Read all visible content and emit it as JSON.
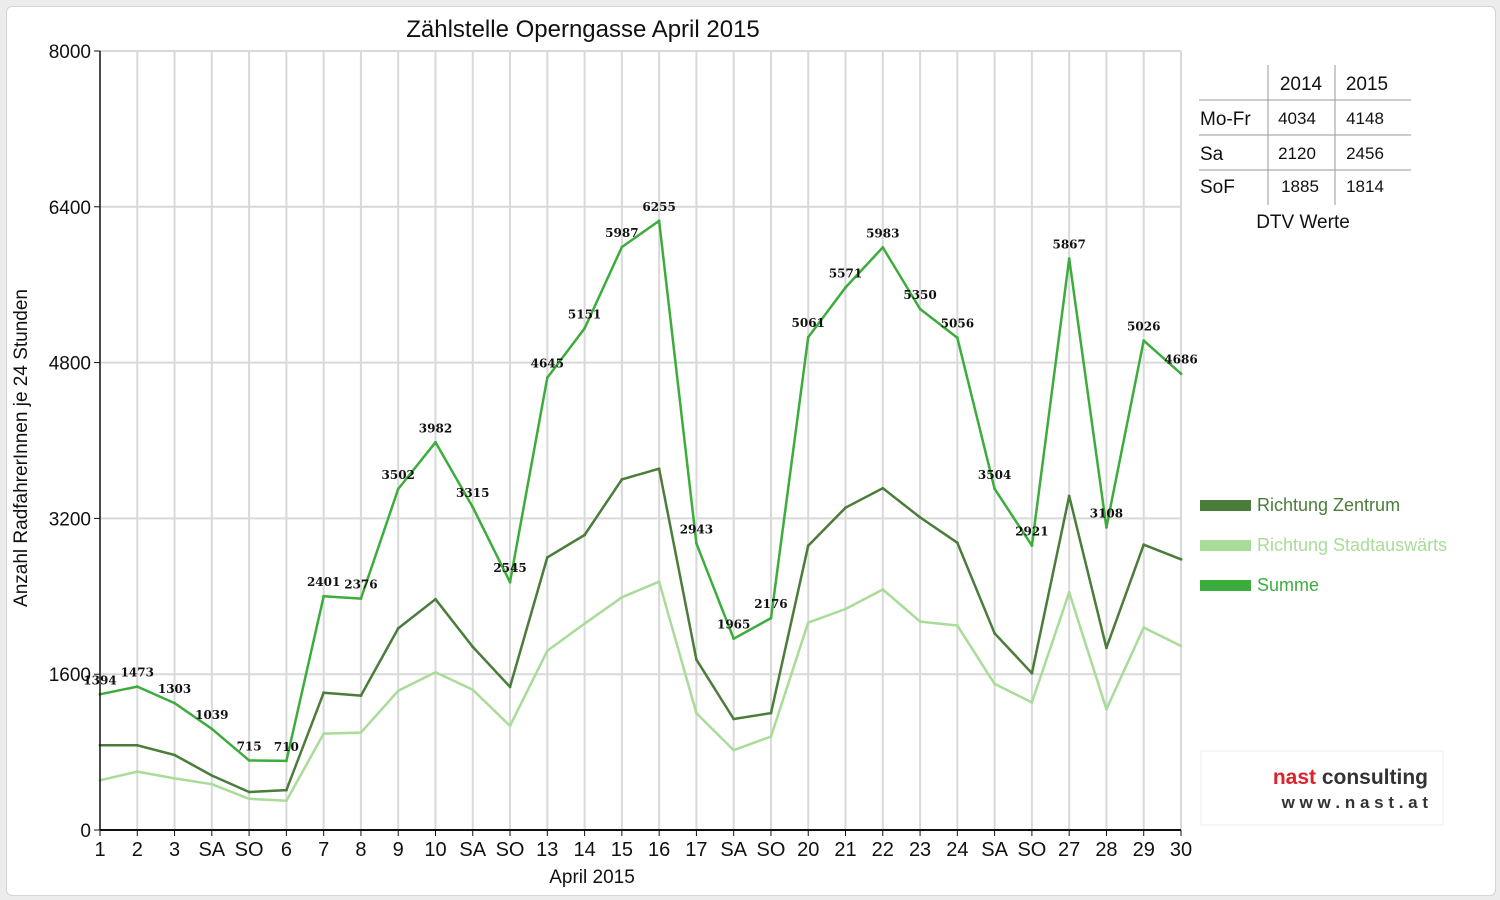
{
  "chart_data": {
    "type": "line",
    "title": "Zählstelle Operngasse April 2015",
    "xlabel": "April 2015",
    "ylabel": "Anzahl RadfahrerInnen je 24 Stunden",
    "ylim": [
      0,
      8000
    ],
    "yticks": [
      "0",
      "1600",
      "3200",
      "4800",
      "6400",
      "8000"
    ],
    "categories": [
      "1",
      "2",
      "3",
      "SA",
      "SO",
      "6",
      "7",
      "8",
      "9",
      "10",
      "SA",
      "SO",
      "13",
      "14",
      "15",
      "16",
      "17",
      "SA",
      "SO",
      "20",
      "21",
      "22",
      "23",
      "24",
      "SA",
      "SO",
      "27",
      "28",
      "29",
      "30"
    ],
    "highlight_categories": [
      4,
      5,
      11,
      18,
      25
    ],
    "highlight_color": "#e00000",
    "grid": true,
    "legend_position": "right",
    "series": [
      {
        "name": "Richtung Zentrum",
        "color": "#4a7c3a",
        "values": [
          870,
          870,
          770,
          560,
          390,
          410,
          1410,
          1380,
          2070,
          2370,
          1880,
          1470,
          2800,
          3030,
          3600,
          3710,
          1750,
          1140,
          1200,
          2920,
          3310,
          3510,
          3210,
          2950,
          2020,
          1610,
          3430,
          1870,
          2930,
          2780
        ]
      },
      {
        "name": "Richtung Stadtauswärts",
        "color": "#a8dc98",
        "values": [
          510,
          600,
          530,
          470,
          320,
          300,
          990,
          1000,
          1430,
          1620,
          1440,
          1070,
          1840,
          2120,
          2390,
          2550,
          1200,
          820,
          960,
          2130,
          2270,
          2470,
          2140,
          2100,
          1500,
          1310,
          2440,
          1240,
          2080,
          1890
        ]
      },
      {
        "name": "Summe",
        "color": "#3cad3c",
        "values": [
          1394,
          1473,
          1303,
          1039,
          715,
          710,
          2401,
          2376,
          3502,
          3982,
          3315,
          2545,
          4645,
          5151,
          5987,
          6255,
          2943,
          1965,
          2176,
          5061,
          5571,
          5983,
          5350,
          5056,
          3504,
          2921,
          5867,
          3108,
          5026,
          4686
        ],
        "labels": [
          "1394",
          "1473",
          "1303",
          "1039",
          "715",
          "710",
          "2401",
          "2376",
          "3502",
          "3982",
          "3315",
          "2545",
          "4645",
          "5151",
          "5987",
          "6255",
          "2943",
          "1965",
          "2176",
          "5061",
          "5571",
          "5983",
          "5350",
          "5056",
          "3504",
          "2921",
          "5867",
          "3108",
          "5026",
          "4686"
        ]
      }
    ]
  },
  "dtv_table": {
    "caption": "DTV Werte",
    "columns": [
      "",
      "2014",
      "2015"
    ],
    "rows": [
      {
        "label": "Mo-Fr",
        "v2014": "4034",
        "v2015": "4148"
      },
      {
        "label": "Sa",
        "v2014": "2120",
        "v2015": "2456"
      },
      {
        "label": "SoF",
        "v2014": "1885",
        "v2015": "1814"
      }
    ]
  },
  "logo": {
    "brand": "nast consulting",
    "url": "w w w . n a s t . a t",
    "brand_color_1": "#e0212b",
    "brand_color_2": "#333333"
  }
}
